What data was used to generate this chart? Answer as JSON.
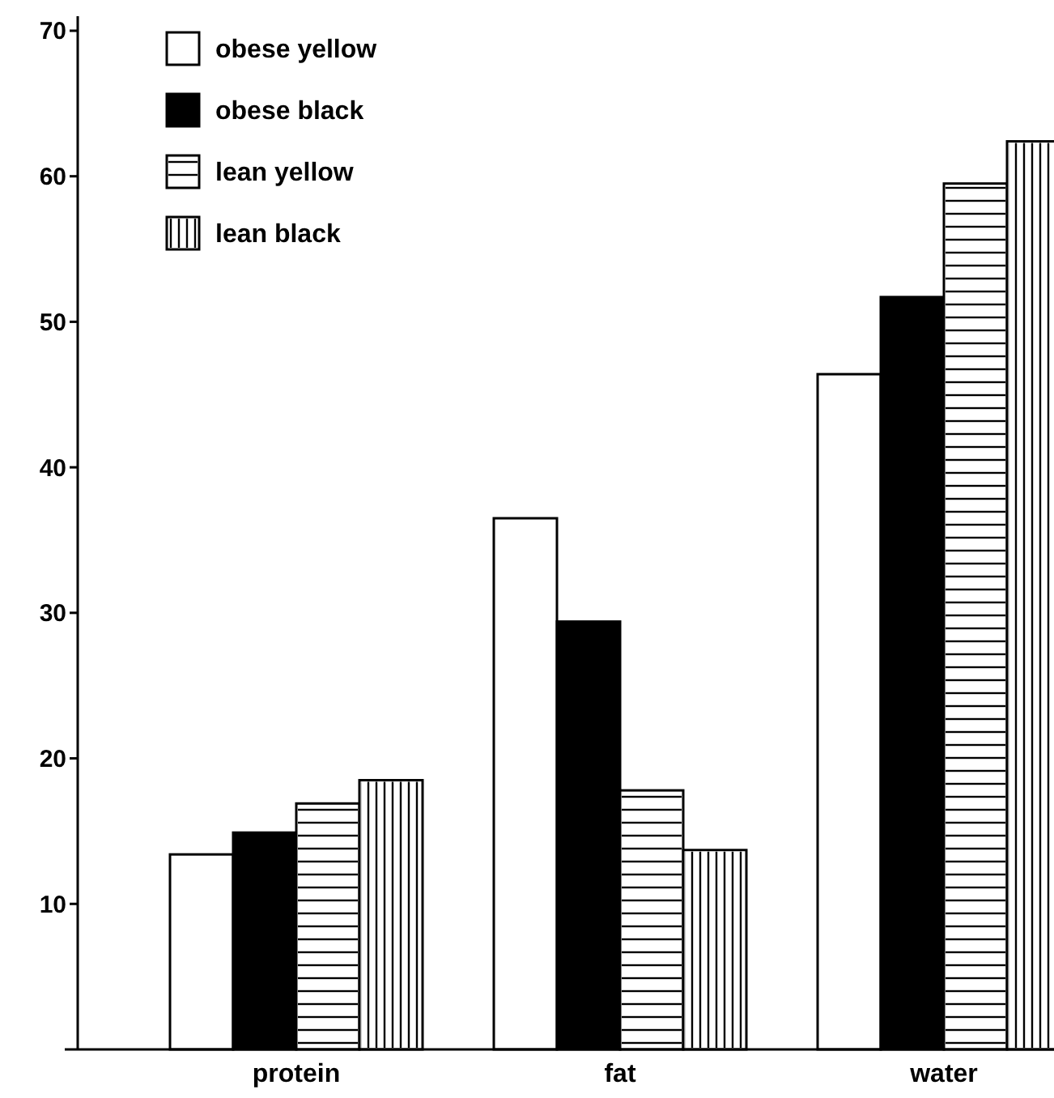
{
  "chart_data": {
    "type": "bar",
    "categories": [
      "protein",
      "fat",
      "water"
    ],
    "series": [
      {
        "name": "obese yellow",
        "color": "#ffffff",
        "values": [
          13.4,
          36.5,
          46.4
        ]
      },
      {
        "name": "obese black",
        "color": "#000000",
        "values": [
          14.9,
          29.4,
          51.7
        ]
      },
      {
        "name": "lean yellow",
        "color": "#ffffff",
        "values": [
          16.9,
          17.8,
          59.5
        ]
      },
      {
        "name": "lean black",
        "color": "#ffffff",
        "values": [
          18.5,
          13.7,
          62.4
        ]
      }
    ],
    "ylim": [
      0,
      71
    ],
    "yticks": [
      10,
      20,
      30,
      40,
      50,
      60,
      70
    ],
    "grid": false,
    "legend": "top left"
  }
}
